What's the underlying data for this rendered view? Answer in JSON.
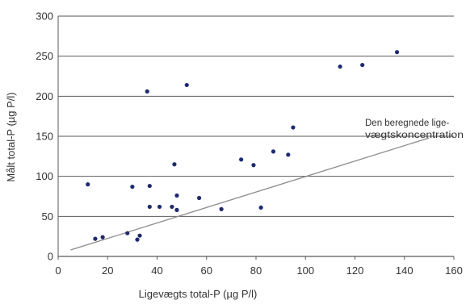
{
  "chart_data": {
    "type": "scatter",
    "title": "",
    "xlabel": "Ligevægts total-P (µg P/l)",
    "ylabel": "Målt total-P (µg P/l)",
    "xlim": [
      0,
      160
    ],
    "ylim": [
      0,
      300
    ],
    "x_ticks": [
      "0",
      "20",
      "40",
      "60",
      "80",
      "100",
      "120",
      "140",
      "160"
    ],
    "y_ticks": [
      "0",
      "50",
      "100",
      "150",
      "200",
      "250",
      "300"
    ],
    "grid": "horizontal",
    "points": [
      {
        "x": 12,
        "y": 90
      },
      {
        "x": 15,
        "y": 22
      },
      {
        "x": 18,
        "y": 24
      },
      {
        "x": 28,
        "y": 29
      },
      {
        "x": 30,
        "y": 87
      },
      {
        "x": 32,
        "y": 21
      },
      {
        "x": 33,
        "y": 26
      },
      {
        "x": 36,
        "y": 206
      },
      {
        "x": 37,
        "y": 88
      },
      {
        "x": 37,
        "y": 62
      },
      {
        "x": 41,
        "y": 62
      },
      {
        "x": 46,
        "y": 62
      },
      {
        "x": 47,
        "y": 115
      },
      {
        "x": 48,
        "y": 76
      },
      {
        "x": 48,
        "y": 58
      },
      {
        "x": 52,
        "y": 214
      },
      {
        "x": 57,
        "y": 73
      },
      {
        "x": 66,
        "y": 59
      },
      {
        "x": 74,
        "y": 121
      },
      {
        "x": 79,
        "y": 114
      },
      {
        "x": 82,
        "y": 61
      },
      {
        "x": 87,
        "y": 131
      },
      {
        "x": 93,
        "y": 127
      },
      {
        "x": 95,
        "y": 161
      },
      {
        "x": 114,
        "y": 237
      },
      {
        "x": 123,
        "y": 239
      },
      {
        "x": 137,
        "y": 255
      }
    ],
    "reference_line": {
      "label_lines": [
        "Den beregnede lige-",
        "vægtskoncentration"
      ],
      "from": [
        5,
        8
      ],
      "to": [
        150,
        148
      ]
    },
    "colors": {
      "points": "#1f2a6e",
      "line": "#8a8a8a",
      "grid": "#5a5a5a",
      "text": "#333333"
    }
  }
}
